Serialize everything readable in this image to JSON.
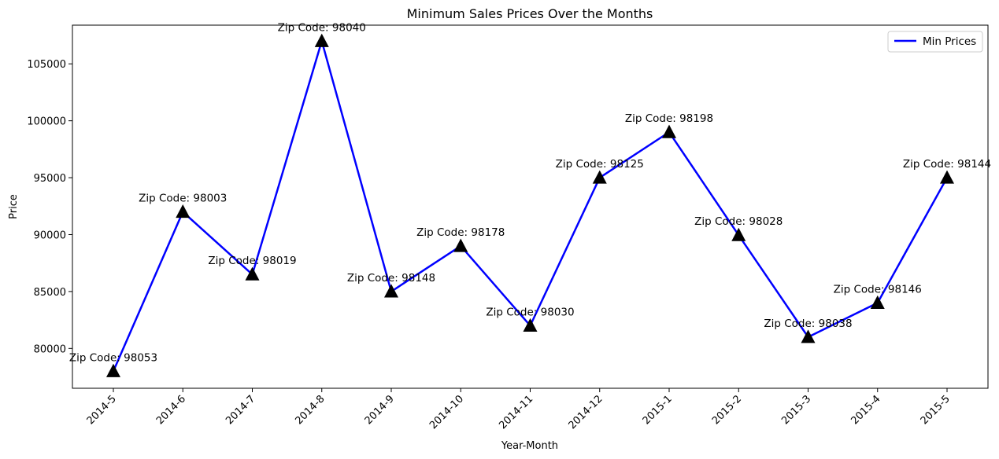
{
  "chart_data": {
    "type": "line",
    "title": "Minimum Sales Prices Over the Months",
    "xlabel": "Year-Month",
    "ylabel": "Price",
    "categories": [
      "2014-5",
      "2014-6",
      "2014-7",
      "2014-8",
      "2014-9",
      "2014-10",
      "2014-11",
      "2014-12",
      "2015-1",
      "2015-2",
      "2015-3",
      "2015-4",
      "2015-5"
    ],
    "series": [
      {
        "name": "Min Prices",
        "color": "#0000ff",
        "values": [
          78000,
          92000,
          86500,
          107000,
          85000,
          89000,
          82000,
          95000,
          99000,
          89950,
          81000,
          84000,
          95000
        ]
      }
    ],
    "annotations": [
      "Zip Code: 98053",
      "Zip Code: 98003",
      "Zip Code: 98019",
      "Zip Code: 98040",
      "Zip Code: 98148",
      "Zip Code: 98178",
      "Zip Code: 98030",
      "Zip Code: 98125",
      "Zip Code: 98198",
      "Zip Code: 98028",
      "Zip Code: 98038",
      "Zip Code: 98146",
      "Zip Code: 98144"
    ],
    "marker": "triangle-up",
    "marker_color": "#000000",
    "yticks": [
      80000,
      85000,
      90000,
      95000,
      100000,
      105000
    ],
    "ylim": [
      76500,
      108400
    ],
    "legend_position": "upper right",
    "grid": false
  }
}
